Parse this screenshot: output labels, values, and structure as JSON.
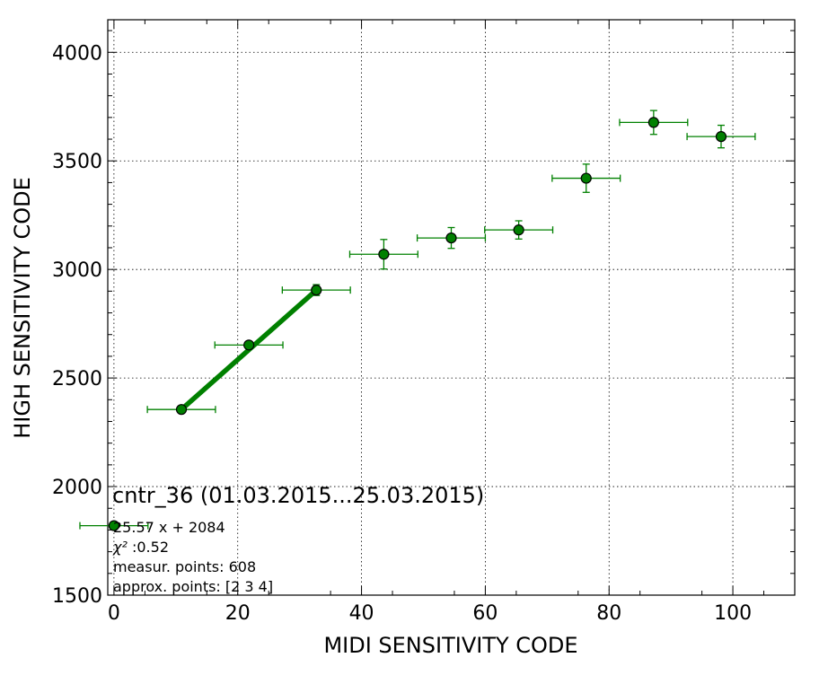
{
  "chart_data": {
    "type": "scatter",
    "title": "cntr_36 (01.03.2015...25.03.2015)",
    "xlabel": "MIDI SENSITIVITY CODE",
    "ylabel": "HIGH SENSITIVITY CODE",
    "xlim": [
      -1,
      110
    ],
    "ylim": [
      1500,
      4150
    ],
    "xticks": [
      0,
      20,
      40,
      60,
      80,
      100
    ],
    "yticks": [
      1500,
      2000,
      2500,
      3000,
      3500,
      4000
    ],
    "grid": true,
    "colors": {
      "marker": "#008000",
      "fit_line": "#008000",
      "marker_edge": "#000000"
    },
    "series": [
      {
        "points": [
          {
            "x": 10.9,
            "y": 2355,
            "xerr": 5.5,
            "yerr": 12
          },
          {
            "x": 21.8,
            "y": 2652,
            "xerr": 5.5,
            "yerr": 15
          },
          {
            "x": 32.7,
            "y": 2905,
            "xerr": 5.5,
            "yerr": 25
          },
          {
            "x": 43.6,
            "y": 3070,
            "xerr": 5.5,
            "yerr": 68
          },
          {
            "x": 54.5,
            "y": 3145,
            "xerr": 5.5,
            "yerr": 48
          },
          {
            "x": 65.4,
            "y": 3182,
            "xerr": 5.5,
            "yerr": 42
          },
          {
            "x": 76.3,
            "y": 3420,
            "xerr": 5.5,
            "yerr": 65
          },
          {
            "x": 87.2,
            "y": 3677,
            "xerr": 5.5,
            "yerr": 55
          },
          {
            "x": 98.1,
            "y": 3612,
            "xerr": 5.5,
            "yerr": 52
          }
        ]
      }
    ],
    "fit_line": {
      "x": [
        10.9,
        32.7
      ],
      "y": [
        2355,
        2905
      ]
    },
    "legend": {
      "placement": "lower-left",
      "marker": {
        "x": 0,
        "y": 1820,
        "xerr": 5.5
      },
      "lines": [
        "25.57 x + 2084",
        " :0.52",
        "measur. points: 608",
        "approx. points: [2 3 4]"
      ],
      "chi_symbol": "χ²"
    }
  }
}
